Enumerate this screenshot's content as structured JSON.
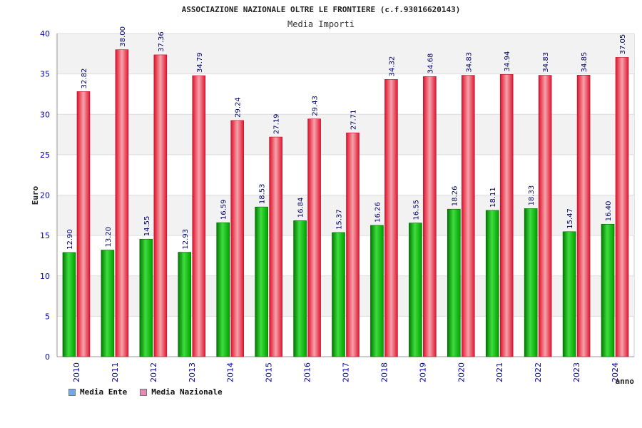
{
  "chart_data": {
    "type": "bar",
    "title": "ASSOCIAZIONE NAZIONALE OLTRE LE FRONTIERE (c.f.93016620143)",
    "subtitle": "Media Importi",
    "xlabel": "anno",
    "ylabel": "Euro",
    "ylim": [
      0,
      40
    ],
    "yticks": [
      0,
      5,
      10,
      15,
      20,
      25,
      30,
      35,
      40
    ],
    "categories": [
      "2010",
      "2011",
      "2012",
      "2013",
      "2014",
      "2015",
      "2016",
      "2017",
      "2018",
      "2019",
      "2020",
      "2021",
      "2022",
      "2023",
      "2024"
    ],
    "series": [
      {
        "name": "Media Ente",
        "values": [
          12.9,
          13.2,
          14.55,
          12.93,
          16.59,
          18.53,
          16.84,
          15.37,
          16.26,
          16.55,
          18.26,
          18.11,
          18.33,
          15.47,
          16.4
        ],
        "labels": [
          "12.90",
          "13.20",
          "14.55",
          "12.93",
          "16.59",
          "18.53",
          "16.84",
          "15.37",
          "16.26",
          "16.55",
          "18.26",
          "18.11",
          "18.33",
          "15.47",
          "16.40"
        ]
      },
      {
        "name": "Media Nazionale",
        "values": [
          32.82,
          38.0,
          37.36,
          34.79,
          29.24,
          27.19,
          29.43,
          27.71,
          34.32,
          34.68,
          34.83,
          34.94,
          34.83,
          34.85,
          37.05
        ],
        "labels": [
          "32.82",
          "38.00",
          "37.36",
          "34.79",
          "29.24",
          "27.19",
          "29.43",
          "27.71",
          "34.32",
          "34.68",
          "34.83",
          "34.94",
          "34.83",
          "34.85",
          "37.05"
        ]
      }
    ],
    "legend": [
      {
        "name": "Media Ente",
        "color": "#6fa8f0"
      },
      {
        "name": "Media Nazionale",
        "color": "#e38ab8"
      }
    ],
    "colors": {
      "ente_dark": "#007a00",
      "ente_light": "#4be84b",
      "naz_dark": "#e0102a",
      "naz_light": "#f4a0a8",
      "band": "#f2f2f2",
      "grid": "#dddddd",
      "tick": "#0000aa"
    }
  }
}
